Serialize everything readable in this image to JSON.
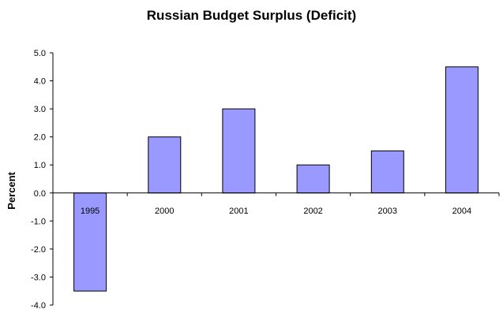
{
  "chart_data": {
    "type": "bar",
    "title": "Russian Budget Surplus (Deficit)",
    "xlabel": "",
    "ylabel": "Percent",
    "categories": [
      "1995",
      "2000",
      "2001",
      "2002",
      "2003",
      "2004"
    ],
    "values": [
      -3.5,
      2.0,
      3.0,
      1.0,
      1.5,
      4.5
    ],
    "ylim": [
      -4.0,
      5.0
    ],
    "yticks": [
      "5.0",
      "4.0",
      "3.0",
      "2.0",
      "1.0",
      "0.0",
      "-1.0",
      "-2.0",
      "-3.0",
      "-4.0"
    ],
    "ytick_values": [
      5,
      4,
      3,
      2,
      1,
      0,
      -1,
      -2,
      -3,
      -4
    ],
    "bar_color": "#9999ff",
    "grid": false,
    "legend": "none"
  }
}
